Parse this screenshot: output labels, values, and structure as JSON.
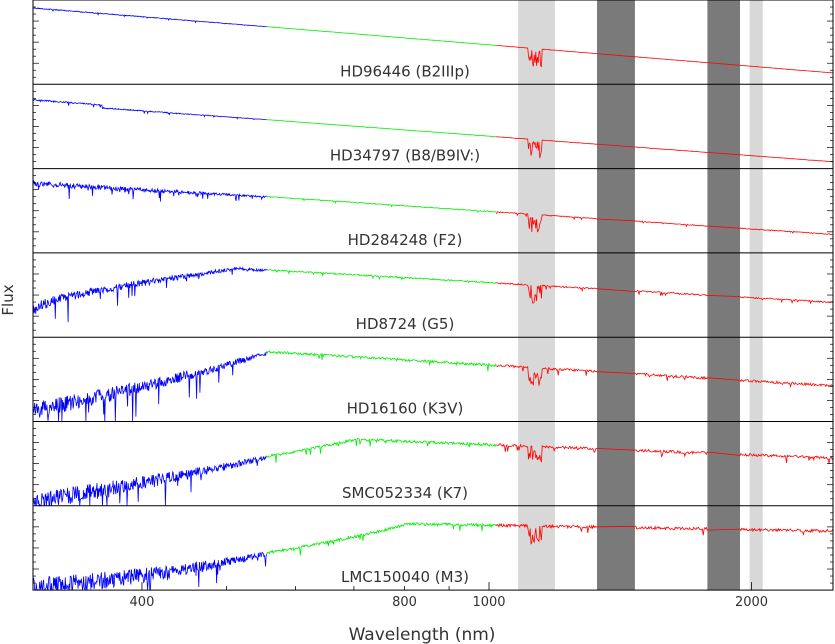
{
  "chart_data": {
    "type": "line",
    "xlabel": "Wavelength (nm)",
    "ylabel": "Flux",
    "xscale": "log",
    "xlim": [
      300,
      2480
    ],
    "x_ticks": [
      400,
      800,
      1000,
      2000
    ],
    "grid": false,
    "legend": "none",
    "arm_colors": {
      "uvb": "#0000ff",
      "vis": "#00ee00",
      "nir": "#ff0000"
    },
    "arm_ranges_nm": {
      "uvb": [
        300,
        556
      ],
      "vis": [
        556,
        1020
      ],
      "nir": [
        1020,
        2480
      ]
    },
    "bands": [
      {
        "from": 1080,
        "to": 1190,
        "shade": "light",
        "color": "#d8d8d8"
      },
      {
        "from": 1330,
        "to": 1470,
        "shade": "dark",
        "color": "#7a7a7a"
      },
      {
        "from": 1780,
        "to": 1940,
        "shade": "dark",
        "color": "#7a7a7a"
      },
      {
        "from": 1990,
        "to": 2060,
        "shade": "light",
        "color": "#d8d8d8"
      }
    ],
    "series": [
      {
        "name": "HD96446 (B2IIIp)",
        "shape": "hot"
      },
      {
        "name": "HD34797 (B8/B9IV:)",
        "shape": "b8"
      },
      {
        "name": "HD284248 (F2)",
        "shape": "f2"
      },
      {
        "name": "HD8724 (G5)",
        "shape": "g5"
      },
      {
        "name": "HD16160 (K3V)",
        "shape": "k3"
      },
      {
        "name": "SMC052334 (K7)",
        "shape": "k7"
      },
      {
        "name": "LMC150040 (M3)",
        "shape": "m3"
      }
    ]
  }
}
